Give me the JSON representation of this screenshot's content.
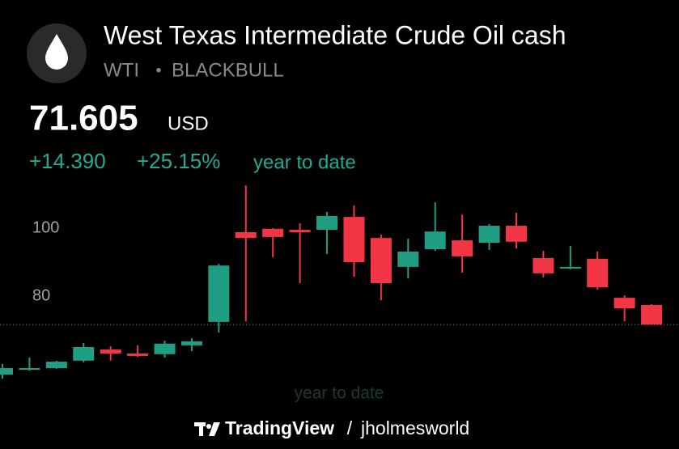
{
  "header": {
    "title": "West Texas Intermediate Crude Oil cash",
    "symbol": "WTI",
    "separator": "•",
    "exchange": "BLACKBULL",
    "price": "71.605",
    "currency": "USD",
    "change": "+14.390",
    "change_percent": "+25.15%",
    "period": "year to date"
  },
  "watermark": "year to date",
  "footer": {
    "brand": "TradingView",
    "separator": "/",
    "author": "jholmesworld"
  },
  "chart_data": {
    "type": "candlestick",
    "open": [
      56.9,
      58.3,
      58.8,
      61.0,
      64.3,
      63.1,
      62.9,
      65.5,
      72.4,
      98.8,
      99.8,
      99.5,
      99.5,
      103.3,
      97.1,
      88.6,
      93.8,
      96.4,
      95.7,
      100.7,
      91.2,
      88.1,
      91.0,
      79.5,
      77.4
    ],
    "high": [
      60.0,
      61.9,
      61.0,
      66.2,
      65.2,
      65.5,
      66.9,
      67.6,
      89.5,
      112.6,
      100.0,
      101.4,
      104.8,
      106.7,
      98.1,
      96.9,
      107.6,
      104.0,
      101.2,
      104.5,
      93.3,
      94.8,
      93.1,
      80.2,
      77.6
    ],
    "low": [
      55.7,
      58.1,
      58.6,
      60.5,
      61.0,
      62.1,
      61.9,
      63.8,
      69.3,
      72.6,
      91.4,
      83.8,
      92.4,
      85.7,
      78.8,
      85.2,
      93.3,
      86.9,
      93.6,
      94.0,
      85.5,
      87.9,
      81.9,
      72.6,
      71.6
    ],
    "close": [
      58.8,
      58.8,
      60.7,
      65.0,
      63.1,
      62.4,
      66.0,
      66.7,
      89.0,
      97.1,
      97.4,
      98.8,
      103.6,
      90.0,
      83.8,
      93.1,
      99.0,
      91.7,
      100.7,
      96.0,
      86.7,
      88.6,
      82.6,
      76.4,
      71.605
    ],
    "up_color": "#1f9e83",
    "down_color": "#f23645",
    "ylim": [
      55,
      114
    ],
    "yticks": [
      80,
      100
    ],
    "grid": false
  }
}
